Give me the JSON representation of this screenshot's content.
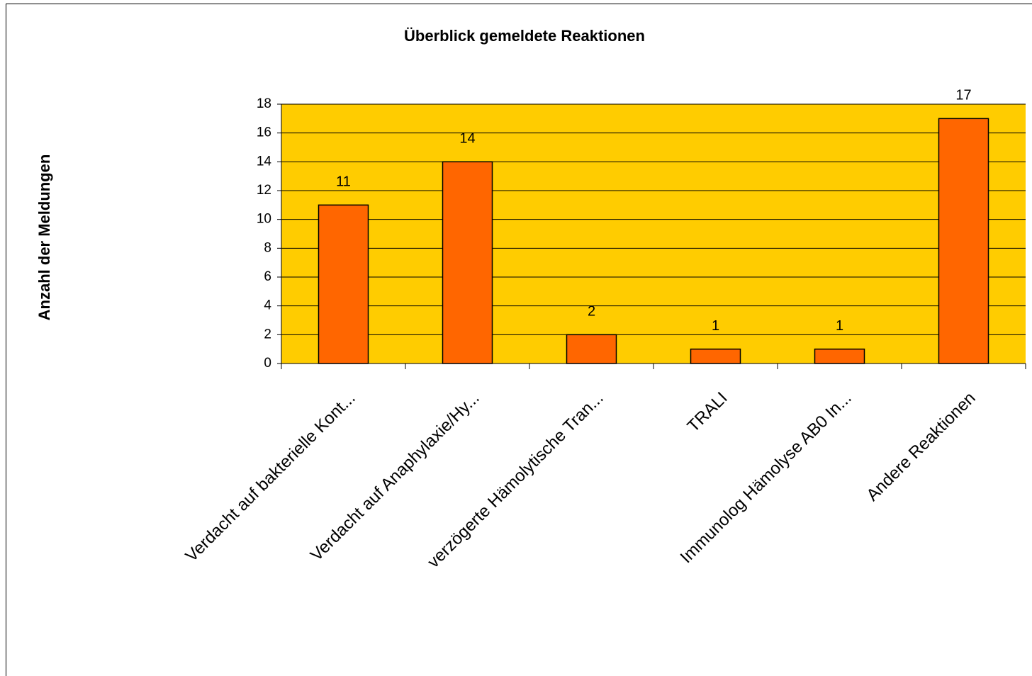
{
  "chart_data": {
    "type": "bar",
    "title": "Überblick gemeldete Reaktionen",
    "y_label": "Anzahl der Meldungen",
    "categories": [
      "Verdacht auf bakterielle Kont...",
      "Verdacht auf Anaphylaxie/Hy...",
      "verzögerte Hämolytische Tran...",
      "TRALI",
      "Immunolog Hämolyse AB0 In...",
      "Andere Reaktionen"
    ],
    "values": [
      11,
      14,
      2,
      1,
      1,
      17
    ],
    "color": "#ff6600",
    "background": "#ffcc00",
    "ylim": [
      0,
      18
    ],
    "yticks": [
      0,
      2,
      4,
      6,
      8,
      10,
      12,
      14,
      16,
      18
    ],
    "grid": true
  }
}
